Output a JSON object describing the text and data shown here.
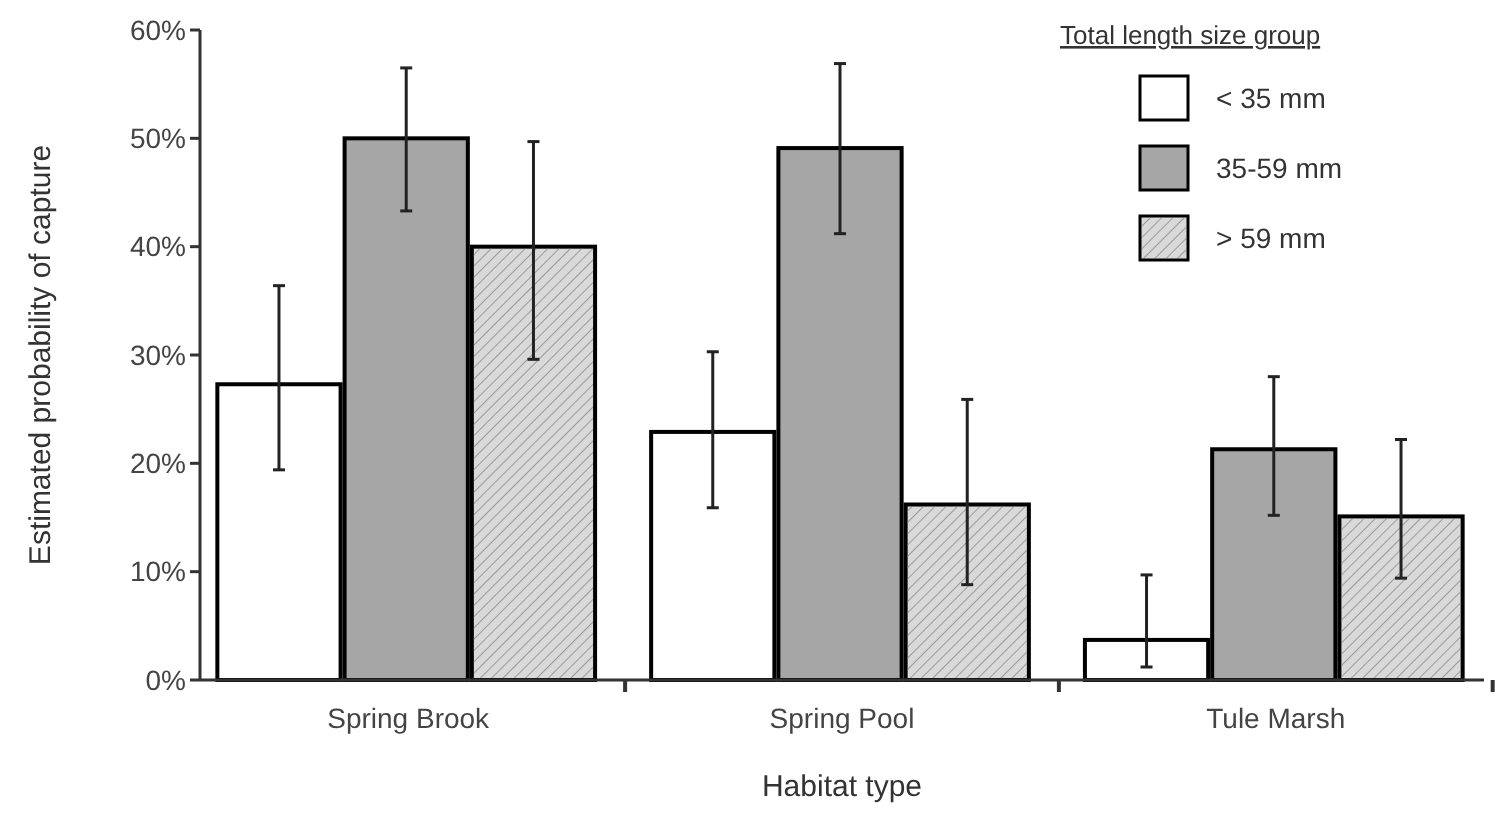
{
  "chart_data": {
    "type": "bar",
    "xlabel": "Habitat type",
    "ylabel": "Estimated probability of capture",
    "legend_title": "Total length size group",
    "legend": "top right",
    "categories": [
      "Spring Brook",
      "Spring Pool",
      "Tule Marsh"
    ],
    "ylim": [
      0,
      60
    ],
    "yticks": [
      {
        "value": 0,
        "label": "0%"
      },
      {
        "value": 10,
        "label": "10%"
      },
      {
        "value": 20,
        "label": "20%"
      },
      {
        "value": 30,
        "label": "30%"
      },
      {
        "value": 40,
        "label": "40%"
      },
      {
        "value": 50,
        "label": "50%"
      },
      {
        "value": 60,
        "label": "60%"
      }
    ],
    "series": [
      {
        "name": "< 35 mm",
        "color": "#ffffff",
        "values": [
          27.3,
          22.9,
          3.7
        ],
        "errors": [
          [
            19.4,
            36.4
          ],
          [
            15.9,
            30.3
          ],
          [
            1.2,
            9.7
          ]
        ]
      },
      {
        "name": "35-59 mm",
        "color": "#a6a6a6",
        "values": [
          50,
          49.1,
          21.3
        ],
        "errors": [
          [
            43.3,
            56.5
          ],
          [
            41.2,
            56.9
          ],
          [
            15.2,
            28
          ]
        ]
      },
      {
        "name": "> 59 mm",
        "color": "#d9d9d9",
        "values": [
          40,
          16.2,
          15.1
        ],
        "errors": [
          [
            29.6,
            49.7
          ],
          [
            8.8,
            25.9
          ],
          [
            9.4,
            22.2
          ]
        ]
      }
    ]
  }
}
